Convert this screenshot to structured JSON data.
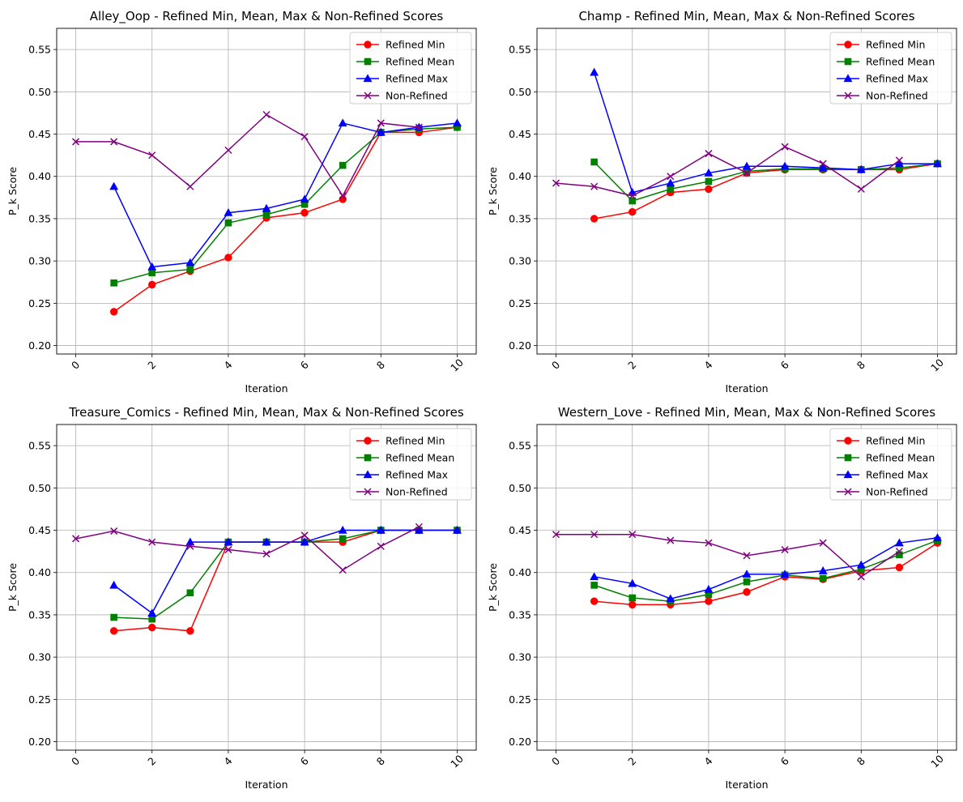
{
  "chart_data": [
    {
      "type": "line",
      "title": "Alley_Oop - Refined Min, Mean, Max & Non-Refined Scores",
      "xlabel": "Iteration",
      "ylabel": "P_k Score",
      "xlim": [
        -0.5,
        10.5
      ],
      "ylim": [
        0.19,
        0.575
      ],
      "xticks": [
        0,
        2,
        4,
        6,
        8,
        10
      ],
      "yticks": [
        0.2,
        0.25,
        0.3,
        0.35,
        0.4,
        0.45,
        0.5,
        0.55
      ],
      "ytick_labels": [
        "0.20",
        "0.25",
        "0.30",
        "0.35",
        "0.40",
        "0.45",
        "0.50",
        "0.55"
      ],
      "grid": true,
      "legend": "top-right",
      "series": [
        {
          "name": "Refined Min",
          "color": "#ff0000",
          "marker": "circle",
          "x": [
            1,
            2,
            3,
            4,
            5,
            6,
            7,
            8,
            9,
            10
          ],
          "values": [
            0.24,
            0.272,
            0.288,
            0.304,
            0.351,
            0.357,
            0.373,
            0.452,
            0.452,
            0.458
          ]
        },
        {
          "name": "Refined Mean",
          "color": "#008000",
          "marker": "square",
          "x": [
            1,
            2,
            3,
            4,
            5,
            6,
            7,
            8,
            9,
            10
          ],
          "values": [
            0.274,
            0.286,
            0.29,
            0.345,
            0.355,
            0.367,
            0.413,
            0.452,
            0.456,
            0.458
          ]
        },
        {
          "name": "Refined Max",
          "color": "#0000ff",
          "marker": "triangle",
          "x": [
            1,
            2,
            3,
            4,
            5,
            6,
            7,
            8,
            9,
            10
          ],
          "values": [
            0.388,
            0.293,
            0.298,
            0.357,
            0.362,
            0.373,
            0.463,
            0.452,
            0.458,
            0.463
          ]
        },
        {
          "name": "Non-Refined",
          "color": "#800080",
          "marker": "x",
          "x": [
            0,
            1,
            2,
            3,
            4,
            5,
            6,
            7,
            8,
            9
          ],
          "values": [
            0.441,
            0.441,
            0.425,
            0.388,
            0.431,
            0.473,
            0.447,
            0.377,
            0.463,
            0.458
          ]
        }
      ]
    },
    {
      "type": "line",
      "title": "Champ - Refined Min, Mean, Max & Non-Refined Scores",
      "xlabel": "Iteration",
      "ylabel": "P_k Score",
      "xlim": [
        -0.5,
        10.5
      ],
      "ylim": [
        0.19,
        0.575
      ],
      "xticks": [
        0,
        2,
        4,
        6,
        8,
        10
      ],
      "yticks": [
        0.2,
        0.25,
        0.3,
        0.35,
        0.4,
        0.45,
        0.5,
        0.55
      ],
      "ytick_labels": [
        "0.20",
        "0.25",
        "0.30",
        "0.35",
        "0.40",
        "0.45",
        "0.50",
        "0.55"
      ],
      "grid": true,
      "legend": "top-right",
      "series": [
        {
          "name": "Refined Min",
          "color": "#ff0000",
          "marker": "circle",
          "x": [
            1,
            2,
            3,
            4,
            5,
            6,
            7,
            8,
            9,
            10
          ],
          "values": [
            0.35,
            0.358,
            0.381,
            0.385,
            0.404,
            0.408,
            0.408,
            0.408,
            0.408,
            0.415
          ]
        },
        {
          "name": "Refined Mean",
          "color": "#008000",
          "marker": "square",
          "x": [
            1,
            2,
            3,
            4,
            5,
            6,
            7,
            8,
            9,
            10
          ],
          "values": [
            0.417,
            0.371,
            0.385,
            0.394,
            0.406,
            0.409,
            0.409,
            0.408,
            0.41,
            0.415
          ]
        },
        {
          "name": "Refined Max",
          "color": "#0000ff",
          "marker": "triangle",
          "x": [
            1,
            2,
            3,
            4,
            5,
            6,
            7,
            8,
            9,
            10
          ],
          "values": [
            0.523,
            0.381,
            0.392,
            0.404,
            0.412,
            0.412,
            0.41,
            0.408,
            0.415,
            0.415
          ]
        },
        {
          "name": "Non-Refined",
          "color": "#800080",
          "marker": "x",
          "x": [
            0,
            1,
            2,
            3,
            4,
            5,
            6,
            7,
            8,
            9
          ],
          "values": [
            0.392,
            0.388,
            0.377,
            0.4,
            0.427,
            0.404,
            0.435,
            0.415,
            0.385,
            0.419
          ]
        }
      ]
    },
    {
      "type": "line",
      "title": "Treasure_Comics - Refined Min, Mean, Max & Non-Refined Scores",
      "xlabel": "Iteration",
      "ylabel": "P_k Score",
      "xlim": [
        -0.5,
        10.5
      ],
      "ylim": [
        0.19,
        0.575
      ],
      "xticks": [
        0,
        2,
        4,
        6,
        8,
        10
      ],
      "yticks": [
        0.2,
        0.25,
        0.3,
        0.35,
        0.4,
        0.45,
        0.5,
        0.55
      ],
      "ytick_labels": [
        "0.20",
        "0.25",
        "0.30",
        "0.35",
        "0.40",
        "0.45",
        "0.50",
        "0.55"
      ],
      "grid": true,
      "legend": "top-right",
      "series": [
        {
          "name": "Refined Min",
          "color": "#ff0000",
          "marker": "circle",
          "x": [
            1,
            2,
            3,
            4,
            5,
            6,
            7,
            8,
            9,
            10
          ],
          "values": [
            0.331,
            0.335,
            0.331,
            0.436,
            0.436,
            0.436,
            0.436,
            0.45,
            0.45,
            0.45
          ]
        },
        {
          "name": "Refined Mean",
          "color": "#008000",
          "marker": "square",
          "x": [
            1,
            2,
            3,
            4,
            5,
            6,
            7,
            8,
            9,
            10
          ],
          "values": [
            0.347,
            0.345,
            0.376,
            0.436,
            0.436,
            0.436,
            0.44,
            0.45,
            0.45,
            0.45
          ]
        },
        {
          "name": "Refined Max",
          "color": "#0000ff",
          "marker": "triangle",
          "x": [
            1,
            2,
            3,
            4,
            5,
            6,
            7,
            8,
            9,
            10
          ],
          "values": [
            0.385,
            0.352,
            0.436,
            0.436,
            0.436,
            0.436,
            0.45,
            0.45,
            0.45,
            0.45
          ]
        },
        {
          "name": "Non-Refined",
          "color": "#800080",
          "marker": "x",
          "x": [
            0,
            1,
            2,
            3,
            4,
            5,
            6,
            7,
            8,
            9
          ],
          "values": [
            0.44,
            0.449,
            0.436,
            0.431,
            0.427,
            0.422,
            0.444,
            0.403,
            0.431,
            0.454
          ]
        }
      ]
    },
    {
      "type": "line",
      "title": "Western_Love - Refined Min, Mean, Max & Non-Refined Scores",
      "xlabel": "Iteration",
      "ylabel": "P_k Score",
      "xlim": [
        -0.5,
        10.5
      ],
      "ylim": [
        0.19,
        0.575
      ],
      "xticks": [
        0,
        2,
        4,
        6,
        8,
        10
      ],
      "yticks": [
        0.2,
        0.25,
        0.3,
        0.35,
        0.4,
        0.45,
        0.5,
        0.55
      ],
      "ytick_labels": [
        "0.20",
        "0.25",
        "0.30",
        "0.35",
        "0.40",
        "0.45",
        "0.50",
        "0.55"
      ],
      "grid": true,
      "legend": "top-right",
      "series": [
        {
          "name": "Refined Min",
          "color": "#ff0000",
          "marker": "circle",
          "x": [
            1,
            2,
            3,
            4,
            5,
            6,
            7,
            8,
            9,
            10
          ],
          "values": [
            0.366,
            0.362,
            0.362,
            0.366,
            0.377,
            0.395,
            0.392,
            0.402,
            0.406,
            0.435
          ]
        },
        {
          "name": "Refined Mean",
          "color": "#008000",
          "marker": "square",
          "x": [
            1,
            2,
            3,
            4,
            5,
            6,
            7,
            8,
            9,
            10
          ],
          "values": [
            0.385,
            0.37,
            0.366,
            0.374,
            0.389,
            0.397,
            0.393,
            0.404,
            0.421,
            0.438
          ]
        },
        {
          "name": "Refined Max",
          "color": "#0000ff",
          "marker": "triangle",
          "x": [
            1,
            2,
            3,
            4,
            5,
            6,
            7,
            8,
            9,
            10
          ],
          "values": [
            0.395,
            0.387,
            0.369,
            0.38,
            0.398,
            0.398,
            0.402,
            0.409,
            0.435,
            0.441
          ]
        },
        {
          "name": "Non-Refined",
          "color": "#800080",
          "marker": "x",
          "x": [
            0,
            1,
            2,
            3,
            4,
            5,
            6,
            7,
            8,
            9
          ],
          "values": [
            0.445,
            0.445,
            0.445,
            0.438,
            0.435,
            0.42,
            0.427,
            0.435,
            0.395,
            0.425
          ]
        }
      ]
    }
  ]
}
